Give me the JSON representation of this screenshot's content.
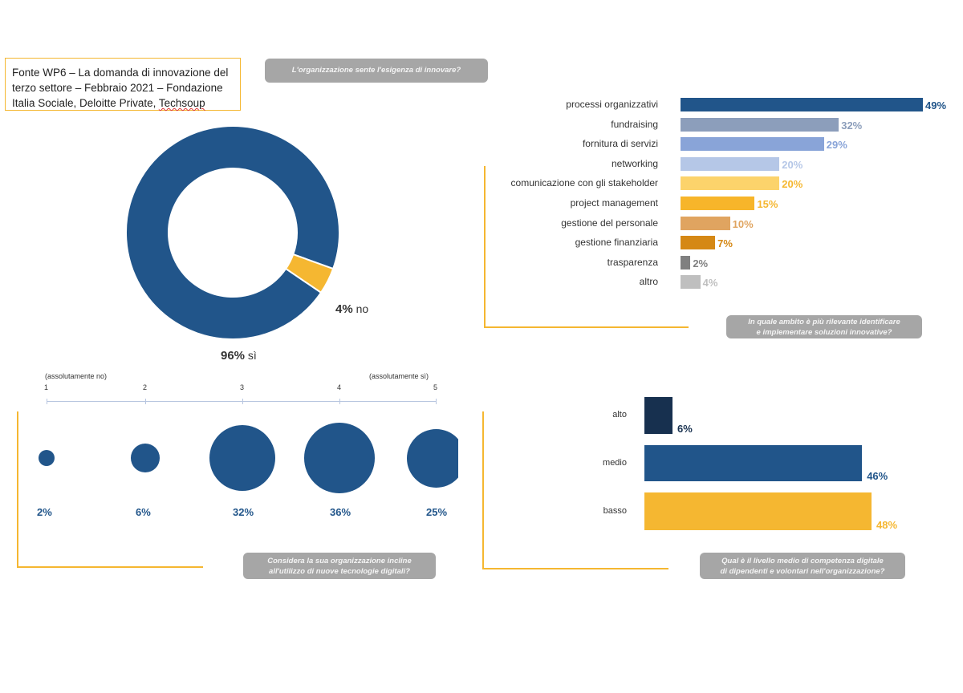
{
  "source_note": {
    "line1": "Fonte WP6 – La domanda di innovazione del",
    "line2": "terzo settore – Febbraio 2021 – Fondazione",
    "line3_a": "Italia Sociale, Deloitte Private, ",
    "line3_b": "Techsoup"
  },
  "colors": {
    "navy": "#21558a",
    "gold": "#f5b731",
    "dark_navy": "#17304f",
    "pill_grey": "#a6a6a6"
  },
  "chart_data": [
    {
      "type": "pie",
      "title": "L'organizzazione sente l'esigenza di innovare?",
      "slices": [
        {
          "label": "sì",
          "value": 96,
          "display": "96%",
          "color": "#21558a"
        },
        {
          "label": "no",
          "value": 4,
          "display": "4%",
          "color": "#f5b731"
        }
      ]
    },
    {
      "type": "bar",
      "orientation": "horizontal",
      "title": "In quale ambito è più rilevante identificare e implementare soluzioni innovative?",
      "title_line1": "In quale ambito è più rilevante identificare",
      "title_line2": "e implementare soluzioni innovative?",
      "xlim": [
        0,
        49
      ],
      "categories": [
        "processi organizzativi",
        "fundraising",
        "fornitura di servizi",
        "networking",
        "comunicazione con gli stakeholder",
        "project management",
        "gestione del personale",
        "gestione finanziaria",
        "trasparenza",
        "altro"
      ],
      "values": [
        49,
        32,
        29,
        20,
        20,
        15,
        10,
        7,
        2,
        4
      ],
      "labels": [
        "49%",
        "32%",
        "29%",
        "20%",
        "20%",
        "15%",
        "10%",
        "7%",
        "2%",
        "4%"
      ],
      "bar_colors": [
        "#21558a",
        "#8c9ebb",
        "#89a4d8",
        "#b5c7e7",
        "#fcd36b",
        "#f7b52a",
        "#e0a460",
        "#d58815",
        "#808080",
        "#bfbfbf"
      ],
      "label_colors": [
        "#21558a",
        "#8c9ebb",
        "#89a4d8",
        "#b5c7e7",
        "#f5b731",
        "#f5b731",
        "#e0a460",
        "#d58815",
        "#808080",
        "#bfbfbf"
      ]
    },
    {
      "type": "scatter",
      "subtype": "bubble",
      "title": "Considera la sua organizzazione incline all'utilizzo di nuove tecnologie digitali?",
      "title_line1": "Considera la sua organizzazione incline",
      "title_line2": "all'utilizzo di nuove tecnologie digitali?",
      "scale_left": "(assolutamente no)",
      "scale_right": "(assolutamente sì)",
      "x": [
        1,
        2,
        3,
        4,
        5
      ],
      "ticks": [
        "1",
        "2",
        "3",
        "4",
        "5"
      ],
      "values": [
        2,
        6,
        32,
        36,
        25
      ],
      "labels": [
        "2%",
        "6%",
        "32%",
        "36%",
        "25%"
      ]
    },
    {
      "type": "bar",
      "orientation": "mixed",
      "title": "Qual è il livello medio di competenza digitale di dipendenti e volontari nell'organizzazione?",
      "title_line1": "Qual è il livello medio di competenza digitale",
      "title_line2": "di dipendenti e volontari nell'organizzazione?",
      "categories": [
        "alto",
        "medio",
        "basso"
      ],
      "values": [
        6,
        46,
        48
      ],
      "labels": [
        "6%",
        "46%",
        "48%"
      ],
      "bar_colors": [
        "#17304f",
        "#21558a",
        "#f5b731"
      ],
      "label_colors": [
        "#17304f",
        "#21558a",
        "#f5b731"
      ]
    }
  ]
}
